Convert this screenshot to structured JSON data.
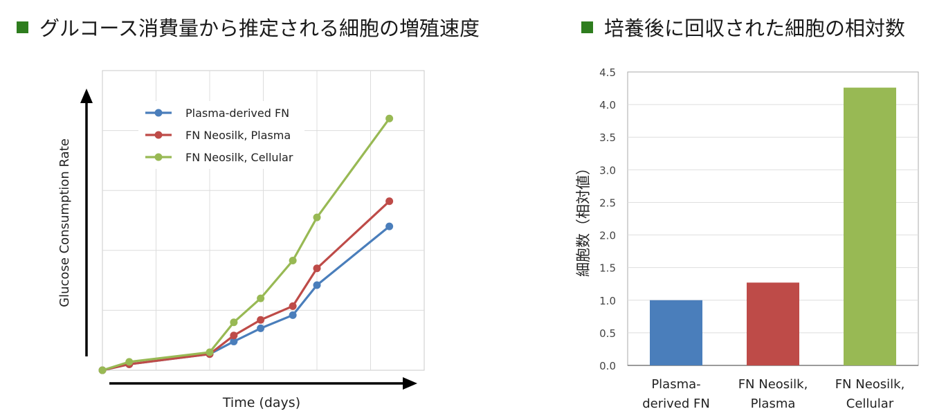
{
  "page": {
    "bullet_color": "#2e7d1e",
    "left_heading": "グルコース消費量から推定される細胞の増殖速度",
    "right_heading": "培養後に回収された細胞の相対数"
  },
  "chart_data": [
    {
      "type": "line",
      "title": "グルコース消費量から推定される細胞の増殖速度",
      "xlabel": "Time (days)",
      "ylabel": "Glucose Consumption Rate",
      "x_ticks_labeled": false,
      "y_ticks_labeled": false,
      "grid": true,
      "legend_position": "top-left (inside plot)",
      "xlim": [
        0,
        6
      ],
      "ylim": [
        0,
        5
      ],
      "series": [
        {
          "name": "Plasma-derived FN",
          "color": "#4a7ebb",
          "x": [
            0,
            0.5,
            2.0,
            2.45,
            2.95,
            3.55,
            4.0,
            5.35
          ],
          "y": [
            0.0,
            0.1,
            0.27,
            0.48,
            0.7,
            0.92,
            1.42,
            2.4
          ]
        },
        {
          "name": "FN Neosilk, Plasma",
          "color": "#be4b48",
          "x": [
            0,
            0.5,
            2.0,
            2.45,
            2.95,
            3.55,
            4.0,
            5.35
          ],
          "y": [
            0.0,
            0.1,
            0.27,
            0.58,
            0.84,
            1.07,
            1.7,
            2.82
          ]
        },
        {
          "name": "FN Neosilk, Cellular",
          "color": "#98b954",
          "x": [
            0,
            0.5,
            2.0,
            2.45,
            2.95,
            3.55,
            4.0,
            5.35
          ],
          "y": [
            0.0,
            0.14,
            0.3,
            0.8,
            1.2,
            1.83,
            2.55,
            4.2
          ]
        }
      ]
    },
    {
      "type": "bar",
      "title": "培養後に回収された細胞の相対数",
      "xlabel": "",
      "ylabel": "細胞数（相対値）",
      "ylim": [
        0,
        4.5
      ],
      "y_ticks": [
        "0.0",
        "0.5",
        "1.0",
        "1.5",
        "2.0",
        "2.5",
        "3.0",
        "3.5",
        "4.0",
        "4.5"
      ],
      "grid": true,
      "categories": [
        [
          "Plasma-",
          "derived FN"
        ],
        [
          "FN Neosilk,",
          "Plasma"
        ],
        [
          "FN Neosilk,",
          "Cellular"
        ]
      ],
      "values": [
        1.0,
        1.27,
        4.26
      ],
      "colors": [
        "#4a7ebb",
        "#be4b48",
        "#98b954"
      ]
    }
  ]
}
